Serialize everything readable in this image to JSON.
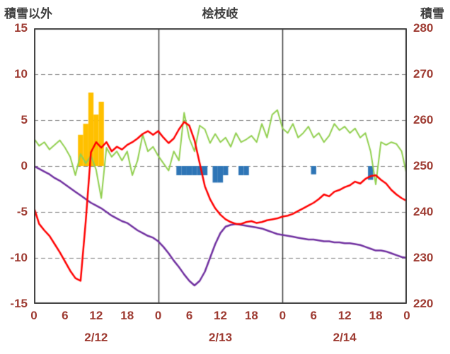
{
  "header": {
    "note": ""
  },
  "chart_data": {
    "type": "line",
    "title": "桧枝岐",
    "x_min": 0,
    "x_max": 72,
    "left_axis": {
      "label": "積雪以外",
      "min": -15,
      "max": 15,
      "ticks": [
        15,
        10,
        5,
        0,
        -5,
        -10,
        -15
      ]
    },
    "right_axis": {
      "label": "積雪",
      "min": 220,
      "max": 280,
      "ticks": [
        280,
        270,
        260,
        250,
        240,
        230,
        220
      ]
    },
    "gridlines": {
      "horizontal_left_values": [
        10,
        5,
        0,
        -5,
        -10
      ],
      "vertical_hours": [
        24,
        48
      ]
    },
    "x_ticks": [
      {
        "hour": 0,
        "label": "0"
      },
      {
        "hour": 6,
        "label": "6"
      },
      {
        "hour": 12,
        "label": "12"
      },
      {
        "hour": 18,
        "label": "18"
      },
      {
        "hour": 24,
        "label": "0"
      },
      {
        "hour": 30,
        "label": "6"
      },
      {
        "hour": 36,
        "label": "12"
      },
      {
        "hour": 42,
        "label": "18"
      },
      {
        "hour": 48,
        "label": "0"
      },
      {
        "hour": 54,
        "label": "6"
      },
      {
        "hour": 60,
        "label": "12"
      },
      {
        "hour": 66,
        "label": "18"
      },
      {
        "hour": 72,
        "label": "0"
      }
    ],
    "date_labels": [
      {
        "hour": 12,
        "label": "2/12"
      },
      {
        "hour": 36,
        "label": "2/13"
      },
      {
        "hour": 60,
        "label": "2/14"
      }
    ],
    "series": [
      {
        "name": "orange-bars",
        "type": "bar",
        "axis": "left",
        "color": "#FFC000",
        "points": [
          {
            "hour": 9,
            "value": 3.4
          },
          {
            "hour": 10,
            "value": 4.6
          },
          {
            "hour": 11,
            "value": 8.0
          },
          {
            "hour": 12,
            "value": 5.6
          },
          {
            "hour": 13,
            "value": 7.0
          }
        ]
      },
      {
        "name": "blue-bars",
        "type": "bar",
        "axis": "left",
        "color": "#2E75B6",
        "points": [
          {
            "hour": 28,
            "value": -1.0
          },
          {
            "hour": 29,
            "value": -1.0
          },
          {
            "hour": 30,
            "value": -1.0
          },
          {
            "hour": 31,
            "value": -1.0
          },
          {
            "hour": 32,
            "value": -1.0
          },
          {
            "hour": 33,
            "value": -1.0
          },
          {
            "hour": 35,
            "value": -1.8
          },
          {
            "hour": 36,
            "value": -1.8
          },
          {
            "hour": 37,
            "value": -1.0
          },
          {
            "hour": 40,
            "value": -1.0
          },
          {
            "hour": 41,
            "value": -1.0
          },
          {
            "hour": 54,
            "value": -0.9
          },
          {
            "hour": 65,
            "value": -1.5
          }
        ]
      },
      {
        "name": "green-line",
        "type": "line",
        "axis": "left",
        "color": "#92D050",
        "width": 2,
        "values": [
          3.0,
          2.2,
          2.6,
          1.8,
          2.3,
          2.8,
          2.0,
          1.0,
          -1.0,
          1.3,
          0.3,
          1.1,
          -0.4,
          -3.5,
          2.0,
          1.0,
          1.6,
          0.6,
          1.6,
          -1.0,
          0.6,
          3.4,
          1.6,
          2.1,
          1.1,
          0.3,
          -0.5,
          1.6,
          0.6,
          5.8,
          3.0,
          1.6,
          4.4,
          4.0,
          2.5,
          3.5,
          2.6,
          3.1,
          2.1,
          3.6,
          2.6,
          2.9,
          3.3,
          2.6,
          4.6,
          3.1,
          5.6,
          6.1,
          4.1,
          3.6,
          4.6,
          3.1,
          3.6,
          4.3,
          3.1,
          3.6,
          2.6,
          3.3,
          4.6,
          3.9,
          4.3,
          3.6,
          4.1,
          3.1,
          3.6,
          1.6,
          -2.0,
          2.6,
          2.3,
          2.6,
          2.4,
          1.6,
          -1.0
        ]
      },
      {
        "name": "purple-line",
        "type": "line",
        "axis": "right",
        "color": "#7030A0",
        "width": 2.5,
        "values": [
          250,
          249.4,
          248.8,
          248.2,
          247.4,
          246.8,
          246,
          245.2,
          244.4,
          243.6,
          242.8,
          242,
          241.4,
          240.8,
          240,
          239.2,
          238.6,
          238,
          237.6,
          236.8,
          236,
          235.4,
          234.8,
          234.4,
          233.6,
          232.4,
          231,
          229.4,
          228,
          226.4,
          225,
          224,
          225,
          227,
          230,
          233,
          235.4,
          236.8,
          237.2,
          237.4,
          237.2,
          237,
          236.8,
          236.6,
          236.4,
          236,
          235.6,
          235.2,
          235,
          234.8,
          234.6,
          234.4,
          234.2,
          234,
          234,
          233.8,
          233.6,
          233.6,
          233.4,
          233.4,
          233.2,
          233.2,
          233,
          232.8,
          232.4,
          232,
          231.6,
          231.6,
          231.4,
          231,
          230.6,
          230.2,
          230
        ]
      },
      {
        "name": "red-line",
        "type": "line",
        "axis": "left",
        "color": "#FF0000",
        "width": 2.5,
        "values": [
          -4.5,
          -6.3,
          -7.0,
          -7.6,
          -8.5,
          -9.4,
          -10.4,
          -11.4,
          -12.2,
          -12.5,
          -6.0,
          1.5,
          2.6,
          2.0,
          2.6,
          1.6,
          2.1,
          1.8,
          2.3,
          2.6,
          3.0,
          3.5,
          3.8,
          3.4,
          3.8,
          3.1,
          2.5,
          3.0,
          4.0,
          4.8,
          4.4,
          2.8,
          0.3,
          -2.2,
          -3.6,
          -4.6,
          -5.3,
          -5.8,
          -6.1,
          -6.3,
          -6.3,
          -6.1,
          -6.0,
          -6.2,
          -6.1,
          -5.9,
          -5.8,
          -5.7,
          -5.5,
          -5.4,
          -5.2,
          -4.9,
          -4.6,
          -4.3,
          -4.0,
          -3.6,
          -3.1,
          -3.3,
          -2.8,
          -2.6,
          -2.3,
          -2.1,
          -1.7,
          -1.9,
          -1.4,
          -1.1,
          -1.0,
          -1.5,
          -1.9,
          -2.6,
          -3.1,
          -3.5,
          -3.8
        ]
      }
    ],
    "colors": {
      "tick_text": "#9e3b32",
      "header_text": "#3f3f3f",
      "grid": "#7f7f7f",
      "frame": "#404040",
      "background": "#ffffff"
    }
  }
}
